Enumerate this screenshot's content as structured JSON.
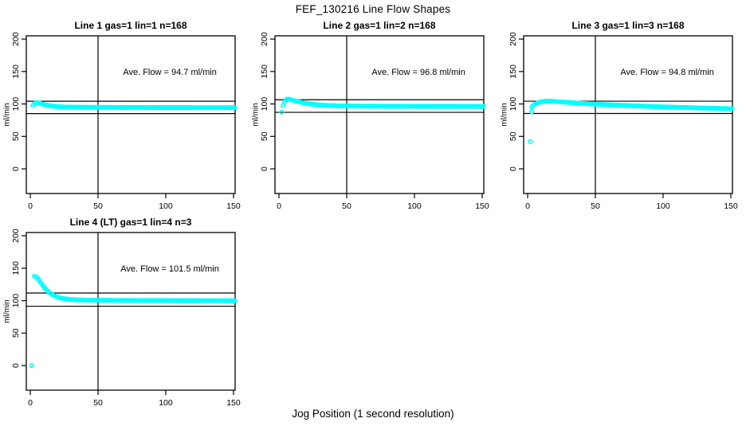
{
  "figure": {
    "title": "FEF_130216  Line Flow Shapes",
    "xlabel": "Jog Position (1 second resolution)",
    "background": "#ffffff",
    "point_color": "#00ffff",
    "axis_color": "#000000"
  },
  "chart_data": [
    {
      "type": "scatter",
      "title": "Line 1 gas=1 lin=1 n=168",
      "ylabel": "ml/min",
      "annotation": "Ave. Flow =  94.7  ml/min",
      "annotation_pos": [
        103,
        150
      ],
      "ave_flow_ml_min": 94.7,
      "n_points": 168,
      "marker": "open-circle",
      "xlim": [
        -2.94,
        151.18
      ],
      "ylim": [
        -38,
        205
      ],
      "xticks": [
        0,
        50,
        100,
        150
      ],
      "yticks": [
        0,
        50,
        100,
        150,
        200
      ],
      "vline_x": 50,
      "hlines": [
        104.2,
        85.2
      ],
      "interp_step": 1,
      "outliers": [],
      "series_keypoints": [
        [
          2,
          97.5
        ],
        [
          3,
          99.8
        ],
        [
          4,
          101.5
        ],
        [
          5,
          102.0
        ],
        [
          6,
          101.8
        ],
        [
          7,
          101.2
        ],
        [
          8,
          100.5
        ],
        [
          9,
          99.8
        ],
        [
          10,
          99.2
        ],
        [
          11,
          98.7
        ],
        [
          12,
          98.2
        ],
        [
          13,
          97.8
        ],
        [
          14,
          97.4
        ],
        [
          15,
          97.1
        ],
        [
          16,
          96.8
        ],
        [
          17,
          96.5
        ],
        [
          18,
          96.3
        ],
        [
          19,
          96.1
        ],
        [
          20,
          95.9
        ],
        [
          22,
          95.6
        ],
        [
          24,
          95.4
        ],
        [
          26,
          95.3
        ],
        [
          28,
          95.2
        ],
        [
          30,
          95.1
        ],
        [
          35,
          95.0
        ],
        [
          40,
          94.9
        ],
        [
          50,
          94.8
        ],
        [
          60,
          94.7
        ],
        [
          70,
          94.6
        ],
        [
          80,
          94.6
        ],
        [
          90,
          94.5
        ],
        [
          100,
          94.5
        ],
        [
          110,
          94.5
        ],
        [
          120,
          94.4
        ],
        [
          130,
          94.4
        ],
        [
          140,
          94.4
        ],
        [
          151,
          94.4
        ]
      ]
    },
    {
      "type": "scatter",
      "title": "Line 2 gas=1 lin=2 n=168",
      "ylabel": "ml/min",
      "annotation": "Ave. Flow =  96.8  ml/min",
      "annotation_pos": [
        103,
        150
      ],
      "ave_flow_ml_min": 96.8,
      "n_points": 168,
      "marker": "open-circle",
      "xlim": [
        -2.94,
        151.18
      ],
      "ylim": [
        -38,
        205
      ],
      "xticks": [
        0,
        50,
        100,
        150
      ],
      "yticks": [
        0,
        50,
        100,
        150,
        200
      ],
      "vline_x": 50,
      "hlines": [
        106.5,
        87.1
      ],
      "interp_step": 1,
      "outliers": [
        [
          2,
          87.5
        ]
      ],
      "series_keypoints": [
        [
          3,
          97.0
        ],
        [
          4,
          103.0
        ],
        [
          5,
          105.8
        ],
        [
          6,
          107.3
        ],
        [
          7,
          107.6
        ],
        [
          8,
          107.2
        ],
        [
          9,
          106.6
        ],
        [
          10,
          106.0
        ],
        [
          11,
          105.4
        ],
        [
          12,
          104.8
        ],
        [
          13,
          104.2
        ],
        [
          14,
          103.7
        ],
        [
          15,
          103.2
        ],
        [
          16,
          102.7
        ],
        [
          17,
          102.2
        ],
        [
          18,
          101.8
        ],
        [
          19,
          101.4
        ],
        [
          20,
          101.0
        ],
        [
          22,
          100.4
        ],
        [
          24,
          99.8
        ],
        [
          26,
          99.3
        ],
        [
          28,
          98.9
        ],
        [
          30,
          98.5
        ],
        [
          32,
          98.2
        ],
        [
          34,
          97.9
        ],
        [
          36,
          97.7
        ],
        [
          38,
          97.5
        ],
        [
          40,
          97.4
        ],
        [
          45,
          97.1
        ],
        [
          50,
          96.9
        ],
        [
          60,
          96.7
        ],
        [
          70,
          96.6
        ],
        [
          80,
          96.5
        ],
        [
          90,
          96.4
        ],
        [
          100,
          96.4
        ],
        [
          110,
          96.3
        ],
        [
          120,
          96.3
        ],
        [
          130,
          96.3
        ],
        [
          140,
          96.2
        ],
        [
          151,
          96.2
        ]
      ]
    },
    {
      "type": "scatter",
      "title": "Line 3 gas=1 lin=3 n=168",
      "ylabel": "ml/min",
      "annotation": "Ave. Flow =  94.8  ml/min",
      "annotation_pos": [
        103,
        150
      ],
      "ave_flow_ml_min": 94.8,
      "n_points": 168,
      "marker": "open-circle",
      "xlim": [
        -2.94,
        151.18
      ],
      "ylim": [
        -38,
        205
      ],
      "xticks": [
        0,
        50,
        100,
        150
      ],
      "yticks": [
        0,
        50,
        100,
        150,
        200
      ],
      "vline_x": 50,
      "hlines": [
        104.3,
        85.3
      ],
      "interp_step": 1,
      "outliers": [
        [
          2,
          42
        ],
        [
          3,
          88
        ]
      ],
      "series_keypoints": [
        [
          3,
          95.0
        ],
        [
          4,
          97.5
        ],
        [
          5,
          99.0
        ],
        [
          6,
          100.2
        ],
        [
          7,
          101.2
        ],
        [
          8,
          102.0
        ],
        [
          9,
          102.7
        ],
        [
          10,
          103.2
        ],
        [
          11,
          103.6
        ],
        [
          12,
          103.9
        ],
        [
          13,
          104.1
        ],
        [
          14,
          104.2
        ],
        [
          15,
          104.3
        ],
        [
          16,
          104.3
        ],
        [
          17,
          104.2
        ],
        [
          18,
          104.1
        ],
        [
          20,
          103.9
        ],
        [
          22,
          103.6
        ],
        [
          24,
          103.3
        ],
        [
          26,
          103.0
        ],
        [
          28,
          102.7
        ],
        [
          30,
          102.4
        ],
        [
          32,
          102.1
        ],
        [
          34,
          101.8
        ],
        [
          36,
          101.5
        ],
        [
          38,
          101.2
        ],
        [
          40,
          100.9
        ],
        [
          42,
          100.7
        ],
        [
          44,
          100.4
        ],
        [
          46,
          100.2
        ],
        [
          48,
          99.9
        ],
        [
          50,
          99.7
        ],
        [
          55,
          99.2
        ],
        [
          60,
          98.7
        ],
        [
          65,
          98.2
        ],
        [
          70,
          97.8
        ],
        [
          75,
          97.4
        ],
        [
          80,
          97.0
        ],
        [
          85,
          96.6
        ],
        [
          90,
          96.2
        ],
        [
          95,
          95.9
        ],
        [
          100,
          95.5
        ],
        [
          105,
          95.2
        ],
        [
          110,
          94.9
        ],
        [
          115,
          94.6
        ],
        [
          120,
          94.3
        ],
        [
          125,
          94.0
        ],
        [
          130,
          93.7
        ],
        [
          135,
          93.4
        ],
        [
          140,
          93.2
        ],
        [
          145,
          93.0
        ],
        [
          151,
          92.7
        ]
      ]
    },
    {
      "type": "scatter",
      "title": "Line 4 (LT) gas=1 lin=4 n=3",
      "ylabel": "ml/min",
      "annotation": "Ave. Flow =  101.5  ml/min",
      "annotation_pos": [
        103,
        150
      ],
      "ave_flow_ml_min": 101.5,
      "n_points": 3,
      "marker": "open-circle",
      "xlim": [
        -2.94,
        151.18
      ],
      "ylim": [
        -38,
        205
      ],
      "xticks": [
        0,
        50,
        100,
        150
      ],
      "yticks": [
        0,
        50,
        100,
        150,
        200
      ],
      "vline_x": 50,
      "hlines": [
        111.7,
        91.4
      ],
      "interp_step": 1,
      "outliers": [
        [
          1,
          0
        ]
      ],
      "series_keypoints": [
        [
          3,
          137.5
        ],
        [
          4,
          137.0
        ],
        [
          5,
          135.5
        ],
        [
          6,
          133.0
        ],
        [
          7,
          130.0
        ],
        [
          8,
          127.0
        ],
        [
          9,
          124.0
        ],
        [
          10,
          121.2
        ],
        [
          11,
          118.7
        ],
        [
          12,
          116.4
        ],
        [
          13,
          114.4
        ],
        [
          14,
          112.6
        ],
        [
          15,
          111.0
        ],
        [
          16,
          109.6
        ],
        [
          17,
          108.4
        ],
        [
          18,
          107.3
        ],
        [
          19,
          106.4
        ],
        [
          20,
          105.6
        ],
        [
          21,
          104.9
        ],
        [
          22,
          104.3
        ],
        [
          23,
          103.8
        ],
        [
          24,
          103.4
        ],
        [
          25,
          103.0
        ],
        [
          26,
          102.7
        ],
        [
          27,
          102.4
        ],
        [
          28,
          102.2
        ],
        [
          29,
          102.0
        ],
        [
          30,
          101.8
        ],
        [
          32,
          101.5
        ],
        [
          34,
          101.3
        ],
        [
          36,
          101.1
        ],
        [
          38,
          101.0
        ],
        [
          40,
          100.9
        ],
        [
          45,
          100.7
        ],
        [
          50,
          100.6
        ],
        [
          55,
          100.5
        ],
        [
          60,
          100.4
        ],
        [
          70,
          100.3
        ],
        [
          80,
          100.2
        ],
        [
          90,
          100.1
        ],
        [
          100,
          100.1
        ],
        [
          110,
          100.0
        ],
        [
          120,
          100.0
        ],
        [
          130,
          99.9
        ],
        [
          140,
          99.9
        ],
        [
          151,
          99.8
        ]
      ]
    }
  ]
}
